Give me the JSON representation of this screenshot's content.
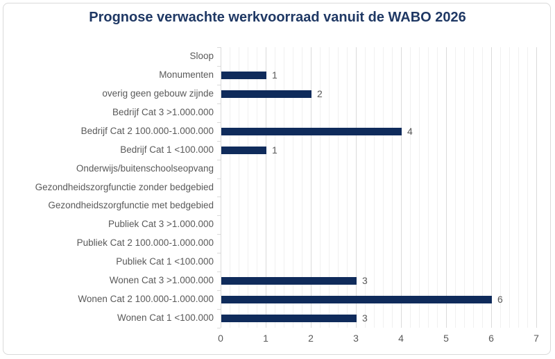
{
  "chart_data": {
    "type": "bar",
    "orientation": "horizontal",
    "title": "Prognose verwachte werkvoorraad vanuit de WABO 2026",
    "categories": [
      "Sloop",
      "Monumenten",
      "overig geen gebouw zijnde",
      "Bedrijf Cat 3 >1.000.000",
      "Bedrijf Cat 2 100.000-1.000.000",
      "Bedrijf Cat 1 <100.000",
      "Onderwijs/buitenschoolseopvang",
      "Gezondheidszorgfunctie zonder bedgebied",
      "Gezondheidszorgfunctie met bedgebied",
      "Publiek Cat 3 >1.000.000",
      "Publiek Cat 2 100.000-1.000.000",
      "Publiek Cat 1 <100.000",
      "Wonen Cat 3 >1.000.000",
      "Wonen Cat 2 100.000-1.000.000",
      "Wonen Cat 1 <100.000"
    ],
    "values": [
      0,
      1,
      2,
      0,
      4,
      1,
      0,
      0,
      0,
      0,
      0,
      0,
      3,
      6,
      3
    ],
    "data_labels_shown_for_nonzero_only": true,
    "xlabel": "",
    "ylabel": "",
    "xlim": [
      0,
      7
    ],
    "x_ticks": [
      0,
      1,
      2,
      3,
      4,
      5,
      6,
      7
    ],
    "minor_unit": 0.2,
    "grid": true,
    "legend": "none",
    "colors": {
      "bar": "#0F2B5B",
      "title": "#1F3864",
      "labels": "#595959",
      "gridline_minor": "#F0F0F0",
      "gridline_major": "#DADADA",
      "axis": "#D9D9D9",
      "frame_border": "#D9D9D9",
      "background": "#FFFFFF"
    }
  }
}
